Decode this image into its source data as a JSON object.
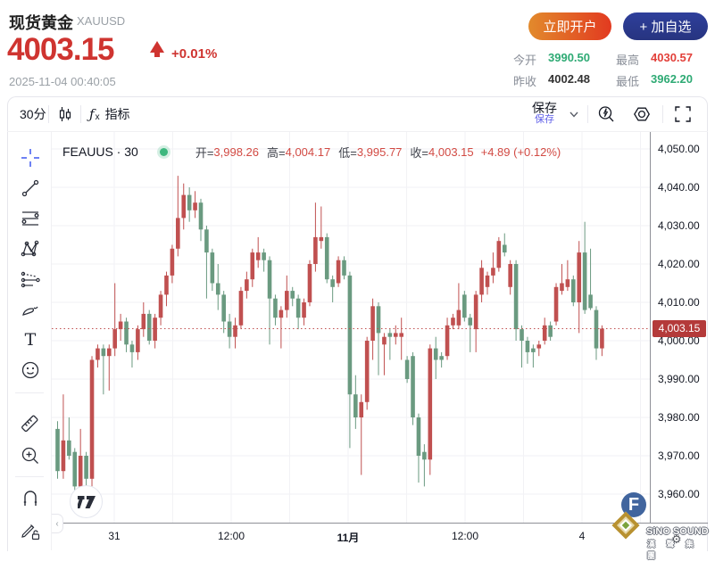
{
  "header": {
    "instrument_name": "现货黄金",
    "symbol": "XAUUSD",
    "price": "4003.15",
    "change_percent": "+0.01%",
    "timestamp": "2025-11-04 00:40:05",
    "open_account_button": "立即开户",
    "add_watchlist_button": "+ 加自选",
    "stats": {
      "today_open_label": "今开",
      "today_open": "3990.50",
      "prev_close_label": "昨收",
      "prev_close": "4002.48",
      "high_label": "最高",
      "high": "4030.57",
      "low_label": "最低",
      "low": "3962.20"
    }
  },
  "toolbar": {
    "interval": "30分",
    "indicators_label": "指标",
    "fx_glyph": "ƒ",
    "fx_sub": "x",
    "save_label": "保存",
    "save_tooltip": "保存",
    "icons": [
      "candles-icon",
      "indicators-fx-icon",
      "chevron-down-icon",
      "flash-search-icon",
      "settings-gear-icon",
      "fullscreen-icon"
    ]
  },
  "tool_rail": {
    "tools": [
      "crosshair",
      "trend-line",
      "fib-retracement",
      "xabcd-pattern",
      "forecast",
      "brush",
      "text",
      "emoji",
      "ruler",
      "zoom-in",
      "magnet",
      "drawing-lock"
    ],
    "active_tool": "crosshair",
    "active_color": "#4a62f0",
    "text_tool_glyph": "T",
    "collapse_glyph": "‹"
  },
  "chart": {
    "legend": {
      "symbol_interval": "FEAUUS · 30",
      "open_label": "开=",
      "open": "3,998.26",
      "high_label": "高=",
      "high": "4,004.17",
      "low_label": "低=",
      "low": "3,995.77",
      "close_label": "收=",
      "close": "4,003.15",
      "change": "+4.89 (+0.12%)"
    },
    "price_label": "4,003.15"
  },
  "chart_data": {
    "type": "candlestick",
    "symbol": "FEAUUS",
    "interval": "30m",
    "up_color": "#c05050",
    "down_color": "#6a9a80",
    "grid_color": "#f2f2f5",
    "last_price": 4003.15,
    "last_price_line_color": "#c05050",
    "ylim": [
      3955,
      4049
    ],
    "y_axis_ticks": [
      "4,050.00",
      "4,040.00",
      "4,030.00",
      "4,020.00",
      "4,010.00",
      "4,000.00",
      "3,990.00",
      "3,980.00",
      "3,970.00",
      "3,960.00"
    ],
    "x_axis_ticks": [
      {
        "label": "31",
        "x": 128,
        "bold": false
      },
      {
        "label": "12:00",
        "x": 259,
        "bold": false
      },
      {
        "label": "11月",
        "x": 390,
        "bold": true
      },
      {
        "label": "12:00",
        "x": 521,
        "bold": false
      },
      {
        "label": "4",
        "x": 652,
        "bold": false
      }
    ],
    "candles": [
      [
        3977,
        3979,
        3964,
        3966
      ],
      [
        3966,
        3986,
        3964,
        3974
      ],
      [
        3974,
        3980,
        3969,
        3970
      ],
      [
        3971,
        3972,
        3961,
        3962
      ],
      [
        3962,
        3977,
        3958,
        3970
      ],
      [
        3970,
        3971,
        3960,
        3964
      ],
      [
        3964,
        3996,
        3962,
        3995
      ],
      [
        3995,
        3999,
        3993,
        3998
      ],
      [
        3998,
        3999,
        3986,
        3996
      ],
      [
        3996,
        3999,
        3987,
        3998
      ],
      [
        3998,
        4015,
        3996,
        4003
      ],
      [
        4003,
        4007,
        4000,
        4005
      ],
      [
        4005,
        4006,
        3997,
        3999
      ],
      [
        3999,
        4000,
        3993,
        3997
      ],
      [
        3997,
        4004,
        3995,
        4003
      ],
      [
        4003,
        4010,
        4001,
        4007
      ],
      [
        4007,
        4008,
        3999,
        4000
      ],
      [
        4000,
        4007,
        3998,
        4006
      ],
      [
        4006,
        4013,
        4004,
        4012
      ],
      [
        4012,
        4018,
        4009,
        4017
      ],
      [
        4017,
        4025,
        4015,
        4024
      ],
      [
        4024,
        4043,
        4022,
        4032
      ],
      [
        4032,
        4041,
        4029,
        4038
      ],
      [
        4038,
        4040,
        4031,
        4034
      ],
      [
        4034,
        4039,
        4032,
        4036
      ],
      [
        4036,
        4037,
        4026,
        4029
      ],
      [
        4029,
        4030,
        4011,
        4023
      ],
      [
        4023,
        4024,
        4013,
        4015
      ],
      [
        4015,
        4020,
        4008,
        4012
      ],
      [
        4012,
        4013,
        4002,
        4005
      ],
      [
        4005,
        4007,
        3998,
        4001
      ],
      [
        4001,
        4006,
        3998,
        4004
      ],
      [
        4004,
        4014,
        4003,
        4013
      ],
      [
        4013,
        4018,
        4011,
        4016
      ],
      [
        4016,
        4024,
        4014,
        4023
      ],
      [
        4021,
        4027,
        4019,
        4023
      ],
      [
        4023,
        4024,
        4018,
        4021
      ],
      [
        4021,
        4022,
        3999,
        4011
      ],
      [
        4011,
        4012,
        4004,
        4006
      ],
      [
        4006,
        4009,
        3998,
        4008
      ],
      [
        4008,
        4017,
        4006,
        4013
      ],
      [
        4013,
        4014,
        4009,
        4011
      ],
      [
        4011,
        4012,
        4003,
        4006
      ],
      [
        4006,
        4011,
        4004,
        4010
      ],
      [
        4010,
        4021,
        4009,
        4020
      ],
      [
        4020,
        4036,
        4018,
        4027
      ],
      [
        4026,
        4035,
        4024,
        4027
      ],
      [
        4027,
        4028,
        4015,
        4016
      ],
      [
        4016,
        4017,
        4010,
        4014
      ],
      [
        4015,
        4022,
        4014,
        4021
      ],
      [
        4021,
        4022,
        4016,
        4017
      ],
      [
        4017,
        4018,
        3972,
        3986
      ],
      [
        3986,
        3991,
        3977,
        3980
      ],
      [
        3980,
        3986,
        3965,
        3984
      ],
      [
        3984,
        4001,
        3982,
        4000
      ],
      [
        4000,
        4011,
        3995,
        4009
      ],
      [
        4009,
        4010,
        3991,
        4002
      ],
      [
        3999,
        4002,
        3991,
        4001
      ],
      [
        4002,
        4003,
        3995,
        4001
      ],
      [
        4001,
        4004,
        3999,
        4002
      ],
      [
        4001,
        4006,
        3995,
        4002
      ],
      [
        3995,
        3996,
        3989,
        3990
      ],
      [
        3996,
        3997,
        3978,
        3980
      ],
      [
        3980,
        3981,
        3963,
        3970
      ],
      [
        3971,
        3973,
        3962,
        3969
      ],
      [
        3969,
        3999,
        3965,
        3998
      ],
      [
        3998,
        4001,
        3990,
        3995
      ],
      [
        3996,
        3997,
        3993,
        3995
      ],
      [
        3996,
        4006,
        3995,
        4004
      ],
      [
        4004,
        4007,
        4003,
        4006
      ],
      [
        4004,
        4015,
        4003,
        4008
      ],
      [
        4012,
        4013,
        4005,
        4006
      ],
      [
        4006,
        4007,
        3997,
        4004
      ],
      [
        4003,
        4013,
        3997,
        4012
      ],
      [
        4012,
        4021,
        4010,
        4019
      ],
      [
        4014,
        4018,
        4012,
        4017
      ],
      [
        4017,
        4023,
        4015,
        4019
      ],
      [
        4019,
        4027,
        4018,
        4026
      ],
      [
        4025,
        4028,
        4022,
        4023
      ],
      [
        4014,
        4021,
        4012,
        4020
      ],
      [
        4020,
        4021,
        4000,
        4003
      ],
      [
        4003,
        4004,
        3993,
        4000
      ],
      [
        4000,
        4001,
        3994,
        3997
      ],
      [
        3998,
        3999,
        3993,
        3997
      ],
      [
        3998,
        4000,
        3996,
        3999
      ],
      [
        4000,
        4006,
        3999,
        4004
      ],
      [
        4004,
        4005,
        4000,
        4001
      ],
      [
        4005,
        4015,
        4004,
        4014
      ],
      [
        4013,
        4020,
        4012,
        4015
      ],
      [
        4014,
        4021,
        4013,
        4016
      ],
      [
        4016,
        4017,
        4009,
        4010
      ],
      [
        4010,
        4026,
        4002,
        4023
      ],
      [
        4023,
        4031,
        4007,
        4008
      ],
      [
        4012,
        4024,
        4008,
        4008.5
      ],
      [
        4008,
        4009,
        3995,
        3998
      ],
      [
        3998,
        4004,
        3996,
        4003.15
      ]
    ]
  },
  "watermark": {
    "brand": "SiNO SOUND",
    "brand_cn": "漢 聲 集 團",
    "tv_logo": "tradingview"
  }
}
